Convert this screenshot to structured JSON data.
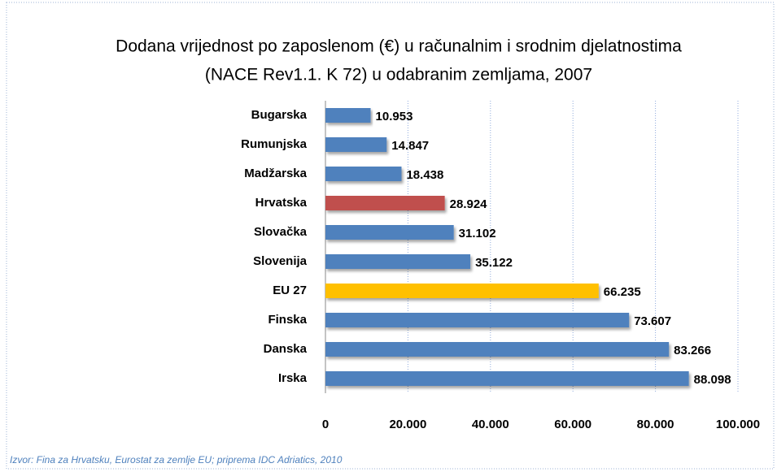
{
  "chart_data": {
    "type": "barh",
    "title": [
      "Dodana vrijednost po zaposlenom (€) u računalnim i srodnim djelatnostima",
      "(NACE Rev1.1. K 72) u odabranim zemljama, 2007"
    ],
    "categories": [
      "Bugarska",
      "Rumunjska",
      "Madžarska",
      "Hrvatska",
      "Slovačka",
      "Slovenija",
      "EU 27",
      "Finska",
      "Danska",
      "Irska"
    ],
    "values": [
      10953,
      14847,
      18438,
      28924,
      31102,
      35122,
      66235,
      73607,
      83266,
      88098
    ],
    "value_labels": [
      "10.953",
      "14.847",
      "18.438",
      "28.924",
      "31.102",
      "35.122",
      "66.235",
      "73.607",
      "83.266",
      "88.098"
    ],
    "colors": [
      "#4f81bd",
      "#4f81bd",
      "#4f81bd",
      "#c0504d",
      "#4f81bd",
      "#4f81bd",
      "#ffc000",
      "#4f81bd",
      "#4f81bd",
      "#4f81bd"
    ],
    "xlim": [
      0,
      100000
    ],
    "xticks": [
      0,
      {
        "value": 20000,
        "label": "20.000"
      },
      {
        "value": 40000,
        "label": "40.000"
      },
      {
        "value": 60000,
        "label": "60.000"
      },
      {
        "value": 80000,
        "label": "80.000"
      },
      {
        "value": 100000,
        "label": "100.000"
      }
    ],
    "grid": true,
    "source": "Izvor: Fina za Hrvatsku, Eurostat  za zemlje EU; priprema IDC Adriatics, 2010"
  }
}
